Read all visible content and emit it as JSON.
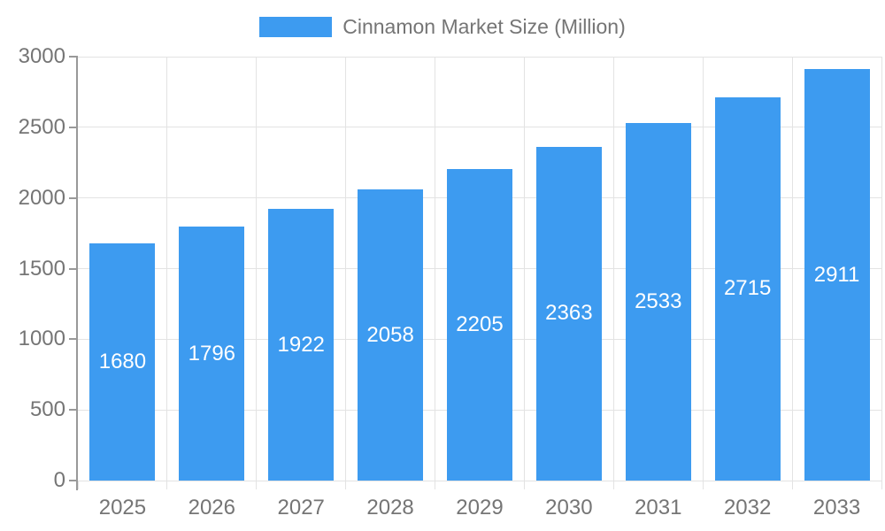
{
  "legend": {
    "label": "Cinnamon Market Size (Million)"
  },
  "chart_data": {
    "type": "bar",
    "title": "Cinnamon Market Size (Million)",
    "series_name": "Cinnamon Market Size (Million)",
    "categories": [
      "2025",
      "2026",
      "2027",
      "2028",
      "2029",
      "2030",
      "2031",
      "2032",
      "2033"
    ],
    "values": [
      1680,
      1796,
      1922,
      2058,
      2205,
      2363,
      2533,
      2715,
      2911
    ],
    "xlabel": "",
    "ylabel": "",
    "ylim": [
      0,
      3000
    ],
    "yticks": [
      0,
      500,
      1000,
      1500,
      2000,
      2500,
      3000
    ],
    "grid": true,
    "legend_position": "top",
    "value_labels": "inside-center",
    "colors": {
      "bar": "#3D9BF0",
      "bar_label": "#FFFFFF",
      "axis_line": "#999999",
      "grid_line": "#E3E3E3",
      "tick_label": "#757575",
      "legend_text": "#757575",
      "background": "#FFFFFF"
    }
  }
}
